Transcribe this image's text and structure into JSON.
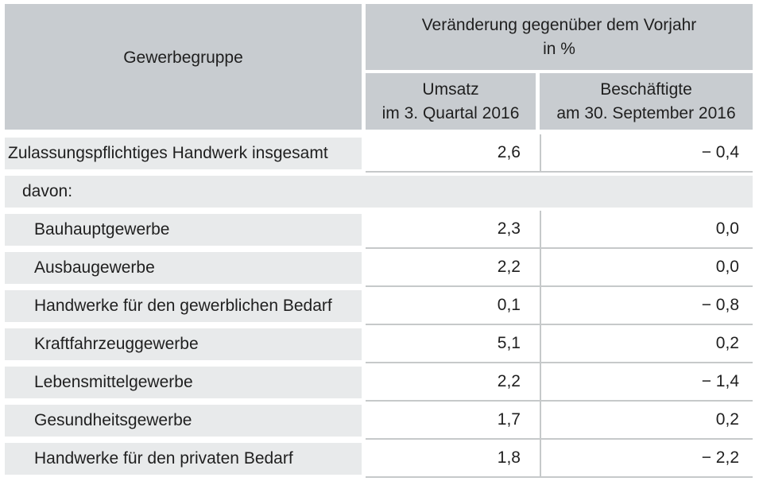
{
  "colors": {
    "header_bg": "#c8ccd0",
    "row_label_bg": "#e8eaeb",
    "grid_line": "#c6c9ca",
    "text": "#1f1f1f",
    "background": "#ffffff"
  },
  "table": {
    "header": {
      "col1": "Gewerbegruppe",
      "group_line1": "Veränderung gegenüber dem Vorjahr",
      "group_line2": "in %",
      "col2_line1": "Umsatz",
      "col2_line2": "im 3. Quartal 2016",
      "col3_line1": "Beschäftigte",
      "col3_line2": "am 30. September 2016"
    },
    "rows": [
      {
        "label": "Zulassungspflichtiges Handwerk insgesamt",
        "umsatz": "2,6",
        "beschaeftigte": "− 0,4",
        "type": "total"
      },
      {
        "label": "davon:",
        "umsatz": "",
        "beschaeftigte": "",
        "type": "section"
      },
      {
        "label": "Bauhauptgewerbe",
        "umsatz": "2,3",
        "beschaeftigte": "0,0",
        "type": "sub"
      },
      {
        "label": "Ausbaugewerbe",
        "umsatz": "2,2",
        "beschaeftigte": "0,0",
        "type": "sub"
      },
      {
        "label": "Handwerke für den gewerblichen Bedarf",
        "umsatz": "0,1",
        "beschaeftigte": "− 0,8",
        "type": "sub"
      },
      {
        "label": "Kraftfahrzeuggewerbe",
        "umsatz": "5,1",
        "beschaeftigte": "0,2",
        "type": "sub"
      },
      {
        "label": "Lebensmittelgewerbe",
        "umsatz": "2,2",
        "beschaeftigte": "− 1,4",
        "type": "sub"
      },
      {
        "label": "Gesundheitsgewerbe",
        "umsatz": "1,7",
        "beschaeftigte": "0,2",
        "type": "sub"
      },
      {
        "label": "Handwerke für den privaten Bedarf",
        "umsatz": "1,8",
        "beschaeftigte": "− 2,2",
        "type": "sub"
      }
    ]
  },
  "chart_data": {
    "type": "table",
    "title": "Veränderung gegenüber dem Vorjahr in %",
    "columns": [
      "Gewerbegruppe",
      "Umsatz im 3. Quartal 2016 (Veränderung gegenüber dem Vorjahr in %)",
      "Beschäftigte am 30. September 2016 (Veränderung gegenüber dem Vorjahr in %)"
    ],
    "rows": [
      {
        "gewerbegruppe": "Zulassungspflichtiges Handwerk insgesamt",
        "umsatz": 2.6,
        "beschaeftigte": -0.4
      },
      {
        "gewerbegruppe": "davon:",
        "umsatz": null,
        "beschaeftigte": null
      },
      {
        "gewerbegruppe": "Bauhauptgewerbe",
        "umsatz": 2.3,
        "beschaeftigte": 0.0
      },
      {
        "gewerbegruppe": "Ausbaugewerbe",
        "umsatz": 2.2,
        "beschaeftigte": 0.0
      },
      {
        "gewerbegruppe": "Handwerke für den gewerblichen Bedarf",
        "umsatz": 0.1,
        "beschaeftigte": -0.8
      },
      {
        "gewerbegruppe": "Kraftfahrzeuggewerbe",
        "umsatz": 5.1,
        "beschaeftigte": 0.2
      },
      {
        "gewerbegruppe": "Lebensmittelgewerbe",
        "umsatz": 2.2,
        "beschaeftigte": -1.4
      },
      {
        "gewerbegruppe": "Gesundheitsgewerbe",
        "umsatz": 1.7,
        "beschaeftigte": 0.2
      },
      {
        "gewerbegruppe": "Handwerke für den privaten Bedarf",
        "umsatz": 1.8,
        "beschaeftigte": -2.2
      }
    ]
  }
}
